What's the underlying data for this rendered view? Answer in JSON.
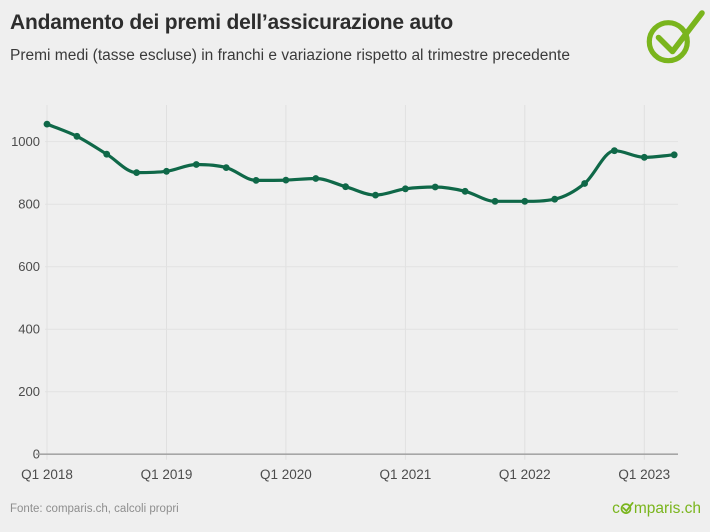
{
  "header": {
    "check_icon": "comparis-check-icon"
  },
  "footer": {
    "source": "Fonte: comparis.ch, calcoli propri",
    "logo_prefix": "c",
    "logo_suffix": "mparis.ch"
  },
  "colors": {
    "background": "#efefef",
    "line": "#0f6848",
    "brand_green": "#7ab51d",
    "grid": "#e2e2e2",
    "axis": "#a6a6a6",
    "tick_text": "#4c4c4c"
  },
  "chart_data": {
    "type": "line",
    "title": "Andamento dei premi dell’assicurazione auto",
    "subtitle": "Premi medi (tasse escluse) in franchi e variazione rispetto al trimestre precedente",
    "x": [
      "Q1 2018",
      "Q2 2018",
      "Q3 2018",
      "Q4 2018",
      "Q1 2019",
      "Q2 2019",
      "Q3 2019",
      "Q4 2019",
      "Q1 2020",
      "Q2 2020",
      "Q3 2020",
      "Q4 2020",
      "Q1 2021",
      "Q2 2021",
      "Q3 2021",
      "Q4 2021",
      "Q1 2022",
      "Q2 2022",
      "Q3 2022",
      "Q4 2022",
      "Q1 2023",
      "Q2 2023"
    ],
    "values": [
      1056,
      1017,
      960,
      901,
      905,
      927,
      917,
      876,
      877,
      882,
      856,
      829,
      849,
      855,
      841,
      809,
      809,
      816,
      866,
      971,
      950,
      958
    ],
    "xticks": [
      "Q1 2018",
      "Q1 2019",
      "Q1 2020",
      "Q1 2021",
      "Q1 2022",
      "Q1 2023"
    ],
    "yticks": [
      0,
      200,
      400,
      600,
      800,
      1000
    ],
    "ylim": [
      0,
      1117
    ],
    "grid": true,
    "legend": false,
    "line_color": "#0f6848",
    "marker": "circle",
    "ylabel": "",
    "xlabel": ""
  }
}
